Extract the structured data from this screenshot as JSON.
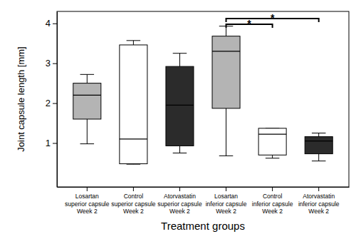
{
  "chart_data": {
    "type": "box",
    "y_label": "Joint capsule length [mm]",
    "x_label": "Treatment groups",
    "categories": [
      "Losartan\nsuperior capsule\nWeek 2",
      "Control\nsuperior capsule\nWeek 2",
      "Atorvastatin\nsuperior capsule\nWeek 2",
      "Losartan\ninferior capsule\nWeek 2",
      "Control\ninferior capsule\nWeek 2",
      "Atorvastatin\ninferior capsule\nWeek 2"
    ],
    "boxes": [
      {
        "min": 0.98,
        "q1": 1.6,
        "median": 2.2,
        "q3": 2.5,
        "max": 2.72
      },
      {
        "min": 0.47,
        "q1": 0.48,
        "median": 1.1,
        "q3": 3.46,
        "max": 3.57
      },
      {
        "min": 0.75,
        "q1": 0.93,
        "median": 1.95,
        "q3": 2.92,
        "max": 3.25
      },
      {
        "min": 0.68,
        "q1": 1.87,
        "median": 3.3,
        "q3": 3.68,
        "max": 3.93
      },
      {
        "min": 0.62,
        "q1": 0.7,
        "median": 1.22,
        "q3": 1.37,
        "max": 1.37
      },
      {
        "min": 0.55,
        "q1": 0.73,
        "median": 1.05,
        "q3": 1.16,
        "max": 1.25
      }
    ],
    "colors": [
      "#b4b4b4",
      "#ffffff",
      "#2b2b2b",
      "#b4b4b4",
      "#ffffff",
      "#2b2b2b"
    ],
    "ylim": [
      -0.1,
      4.3
    ],
    "yticks": [
      1,
      2,
      3,
      4
    ],
    "annotations": [
      {
        "from": 3,
        "to": 4,
        "label": "*"
      },
      {
        "from": 3,
        "to": 5,
        "label": "*"
      }
    ]
  }
}
